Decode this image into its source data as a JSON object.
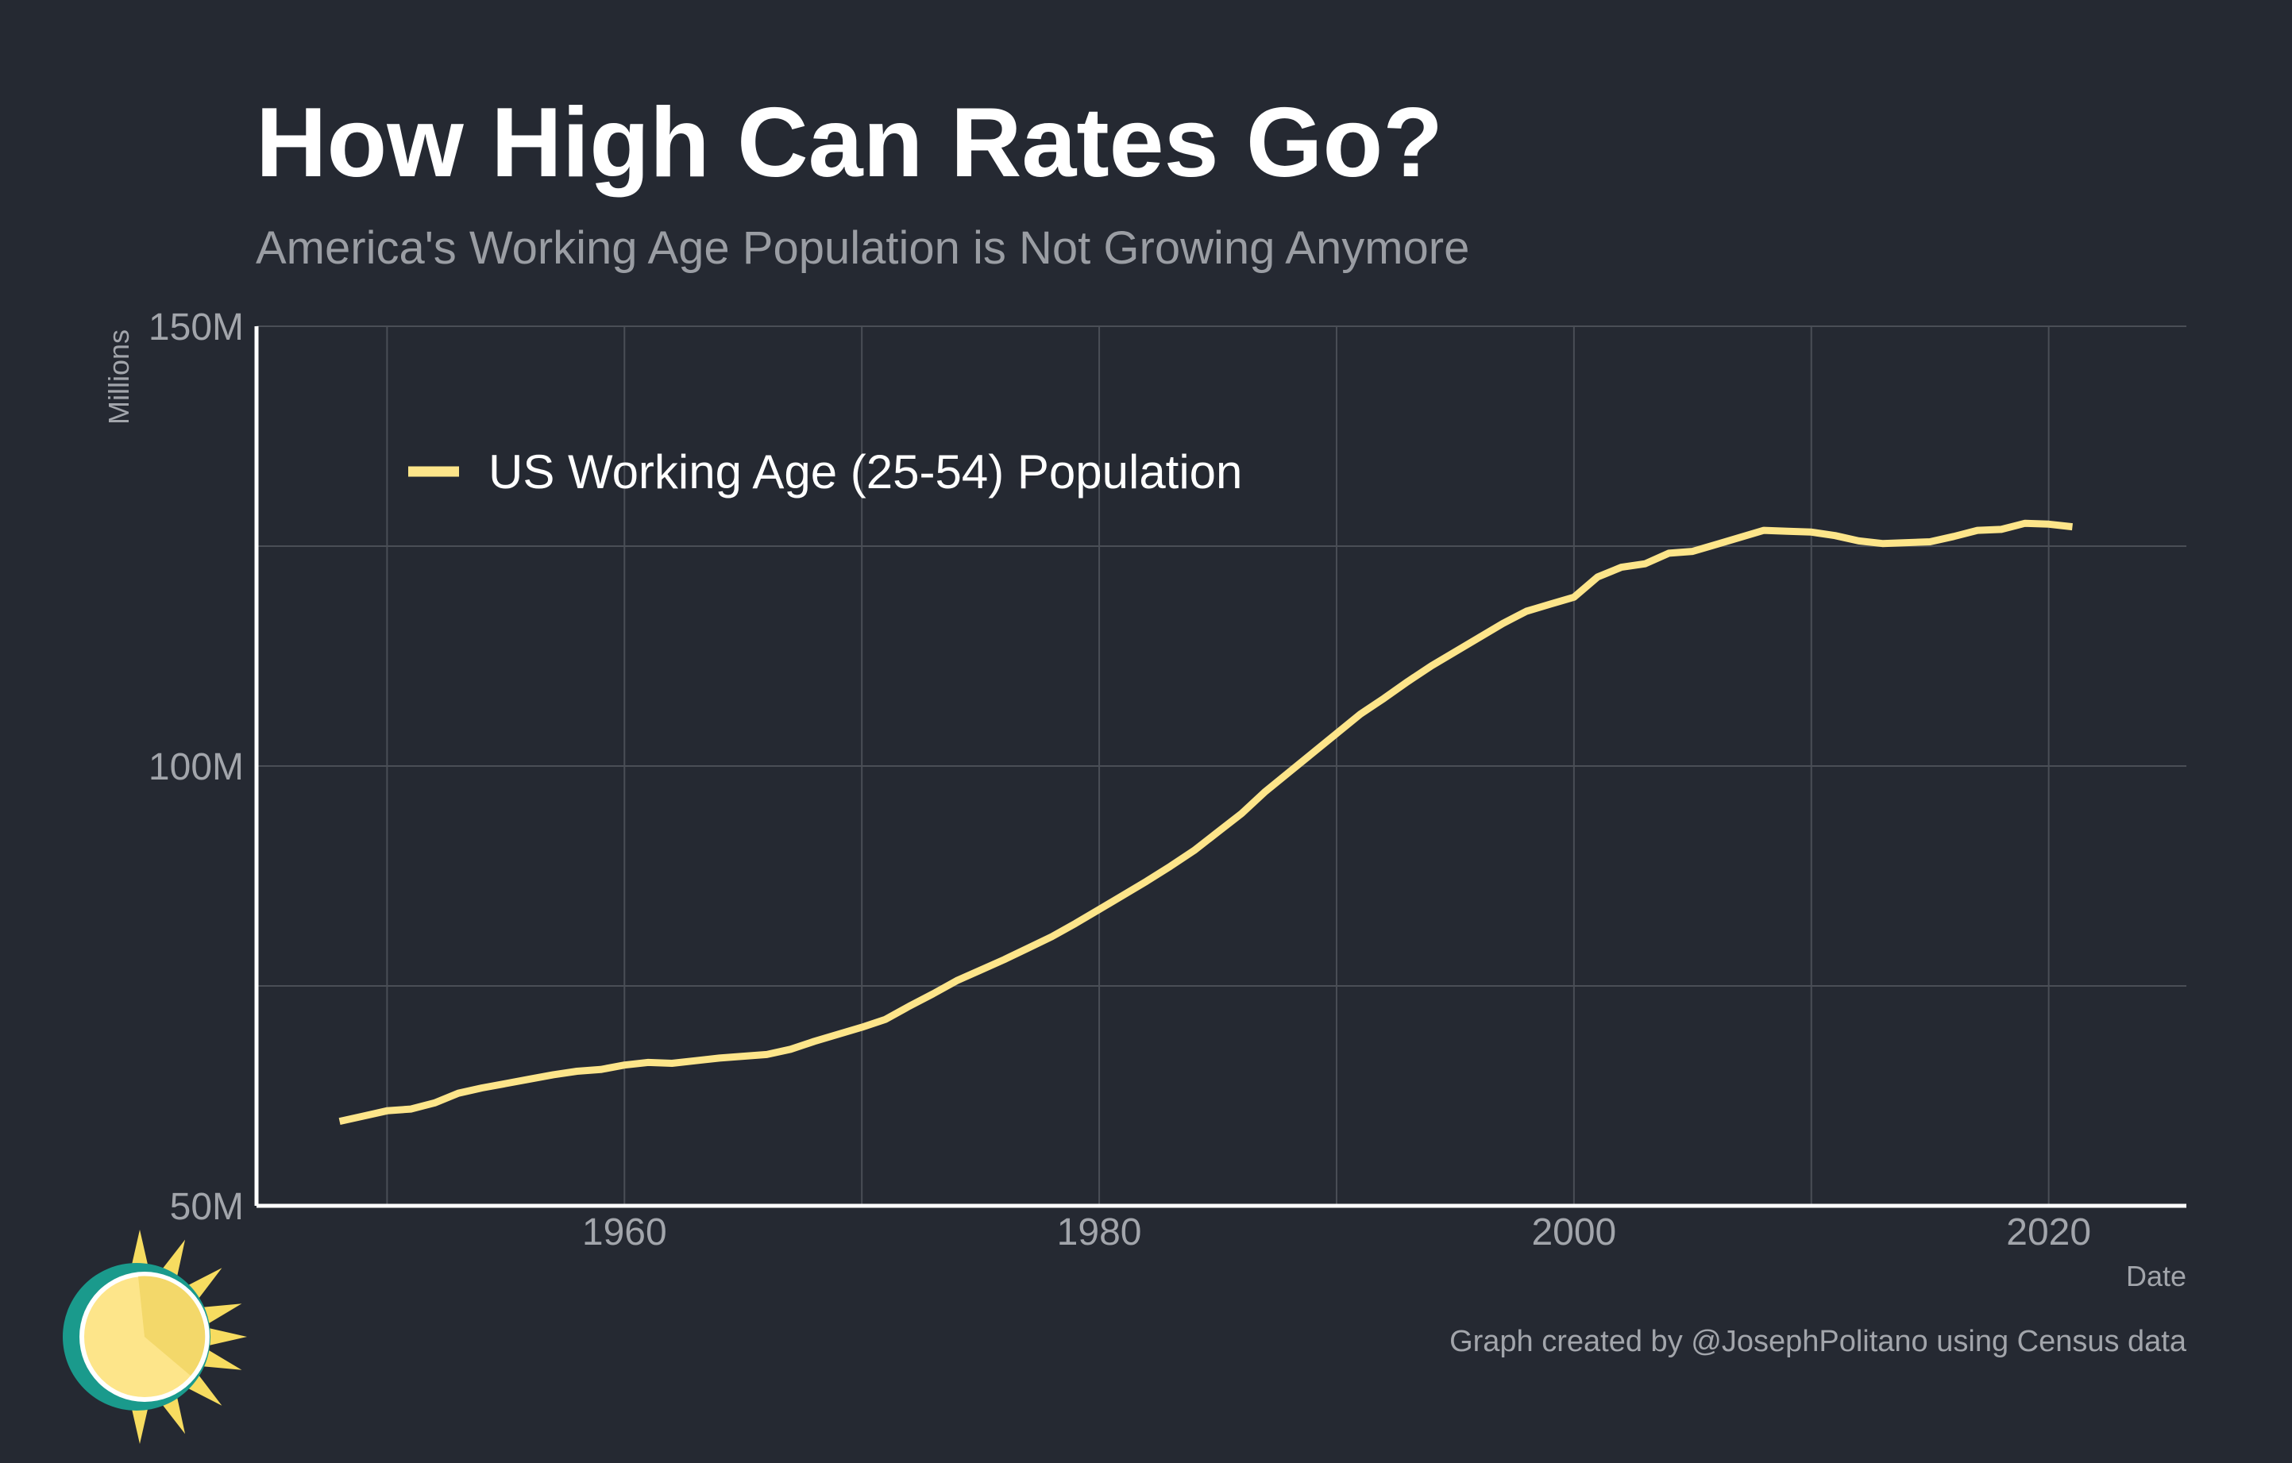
{
  "title": "How High Can Rates Go?",
  "subtitle": "America's Working Age Population is Not Growing Anymore",
  "caption": "Graph created by @JosephPolitano using Census data",
  "colors": {
    "background": "#252932",
    "line": "#fde58a",
    "grid": "#4a4e56",
    "axis": "#ffffff",
    "muted_text": "#a2a5ab"
  },
  "logo": {
    "icon": "sun-icon",
    "colors": {
      "ring": "#1a9a8c",
      "disc": "#fde58a",
      "rays": "#f7dc60"
    }
  },
  "chart_data": {
    "type": "line",
    "title": "How High Can Rates Go?",
    "subtitle": "America's Working Age Population is Not Growing Anymore",
    "xlabel": "Date",
    "ylabel": "Millions",
    "xlim": [
      1944.5,
      2025.8
    ],
    "ylim": [
      50,
      150
    ],
    "x_ticks": [
      1960,
      1980,
      2000,
      2020
    ],
    "x_tick_labels": [
      "1960",
      "1980",
      "2000",
      "2020"
    ],
    "x_minor_grid": [
      1950,
      1970,
      1990,
      2010
    ],
    "y_ticks": [
      50,
      100,
      150
    ],
    "y_tick_labels": [
      "50M",
      "100M",
      "150M"
    ],
    "y_minor_grid": [
      75,
      125
    ],
    "grid": true,
    "legend": {
      "position": "top-left",
      "entries": [
        "US Working Age (25-54) Population"
      ]
    },
    "series": [
      {
        "name": "US Working Age (25-54) Population",
        "color": "#fde58a",
        "x": [
          1948,
          1949,
          1950,
          1951,
          1952,
          1953,
          1954,
          1955,
          1956,
          1957,
          1958,
          1959,
          1960,
          1961,
          1962,
          1963,
          1964,
          1965,
          1966,
          1967,
          1968,
          1969,
          1970,
          1971,
          1972,
          1973,
          1974,
          1975,
          1976,
          1977,
          1978,
          1979,
          1980,
          1981,
          1982,
          1983,
          1984,
          1985,
          1986,
          1987,
          1988,
          1989,
          1990,
          1991,
          1992,
          1993,
          1994,
          1995,
          1996,
          1997,
          1998,
          1999,
          2000,
          2001,
          2002,
          2003,
          2004,
          2005,
          2006,
          2007,
          2008,
          2009,
          2010,
          2011,
          2012,
          2013,
          2014,
          2015,
          2016,
          2017,
          2018,
          2019,
          2020,
          2021
        ],
        "values": [
          59.6,
          60.2,
          60.8,
          61.0,
          61.7,
          62.8,
          63.4,
          63.9,
          64.4,
          64.9,
          65.3,
          65.5,
          66.0,
          66.3,
          66.2,
          66.5,
          66.8,
          67.0,
          67.2,
          67.8,
          68.7,
          69.5,
          70.3,
          71.2,
          72.7,
          74.1,
          75.6,
          76.8,
          78.0,
          79.3,
          80.6,
          82.1,
          83.7,
          85.3,
          86.9,
          88.6,
          90.4,
          92.5,
          94.6,
          97.1,
          99.3,
          101.5,
          103.7,
          105.9,
          107.7,
          109.6,
          111.4,
          113.0,
          114.6,
          116.2,
          117.6,
          118.4,
          119.2,
          121.5,
          122.6,
          123.0,
          124.2,
          124.4,
          125.2,
          126.0,
          126.8,
          126.7,
          126.6,
          126.2,
          125.6,
          125.3,
          125.4,
          125.5,
          126.1,
          126.8,
          126.9,
          127.6,
          127.5,
          127.2
        ]
      }
    ]
  }
}
